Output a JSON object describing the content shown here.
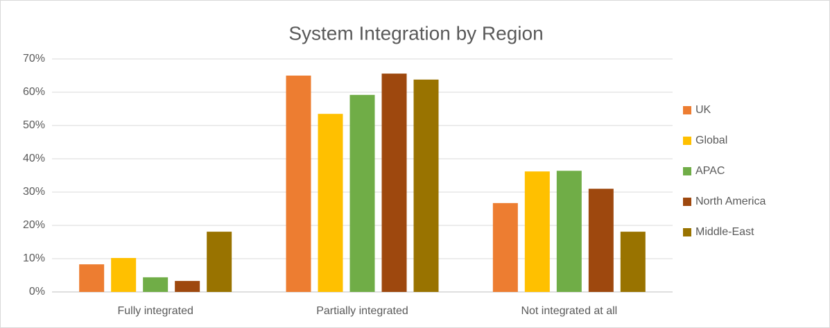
{
  "chart_data": {
    "type": "bar",
    "title": "System Integration by Region",
    "categories": [
      "Fully integrated",
      "Partially integrated",
      "Not integrated at all"
    ],
    "series": [
      {
        "name": "UK",
        "color": "#ed7d31",
        "values": [
          8.3,
          65,
          26.7
        ]
      },
      {
        "name": "Global",
        "color": "#ffc000",
        "values": [
          10.2,
          53.5,
          36.2
        ]
      },
      {
        "name": "APAC",
        "color": "#70ad47",
        "values": [
          4.4,
          59.2,
          36.4
        ]
      },
      {
        "name": "North America",
        "color": "#9e480e",
        "values": [
          3.3,
          65.6,
          31
        ]
      },
      {
        "name": "Middle-East",
        "color": "#997300",
        "values": [
          18.1,
          63.8,
          18.1
        ]
      }
    ],
    "ylim": [
      0,
      70
    ],
    "yticks": [
      {
        "value": 0,
        "label": "0%"
      },
      {
        "value": 10,
        "label": "10%"
      },
      {
        "value": 20,
        "label": "20%"
      },
      {
        "value": 30,
        "label": "30%"
      },
      {
        "value": 40,
        "label": "40%"
      },
      {
        "value": 50,
        "label": "50%"
      },
      {
        "value": 60,
        "label": "60%"
      },
      {
        "value": 70,
        "label": "70%"
      }
    ],
    "grid": true,
    "legend": "right"
  }
}
